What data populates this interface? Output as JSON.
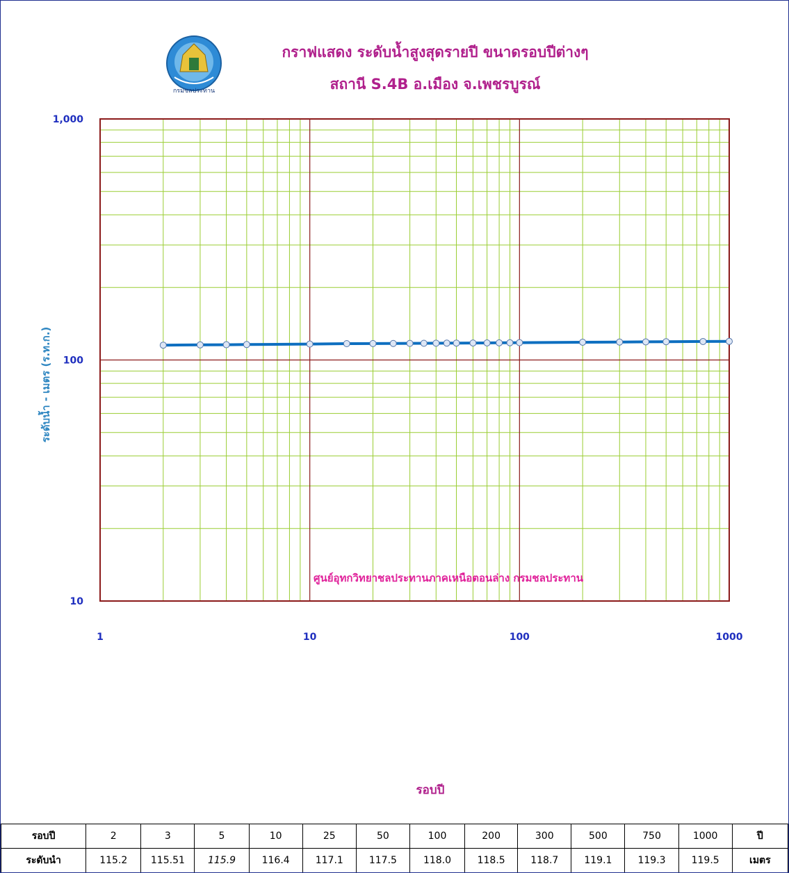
{
  "header": {
    "title": "กราฟแสดง ระดับน้ำสูงสุดรายปี ขนาดรอบปีต่างๆ",
    "subtitle": "สถานี S.4B  อ.เมือง จ.เพชรบูรณ์",
    "logo_text": "กรมชลประทาน"
  },
  "chart_data": {
    "type": "line",
    "xlabel": "รอบปี",
    "ylabel": "ระดับน้ำ  -  เมตร (ร.ท.ก.)",
    "x_scale": "log",
    "y_scale": "log",
    "xlim": [
      1,
      1000
    ],
    "ylim": [
      10,
      1000
    ],
    "x_tick_labels": [
      "1",
      "10",
      "100",
      "1000"
    ],
    "y_tick_labels": [
      "10",
      "100",
      "1,000"
    ],
    "annotation": "ศูนย์อุทกวิทยาชลประทานภาคเหนือตอนล่าง  กรมชลประทาน",
    "grid": true,
    "series": [
      {
        "x": [
          2,
          3,
          4,
          5,
          10,
          15,
          20,
          25,
          30,
          35,
          40,
          45,
          50,
          60,
          70,
          80,
          90,
          100,
          200,
          300,
          400,
          500,
          750,
          1000
        ],
        "y": [
          115.2,
          115.51,
          115.7,
          115.9,
          116.4,
          116.9,
          117.0,
          117.1,
          117.2,
          117.3,
          117.4,
          117.45,
          117.5,
          117.6,
          117.7,
          117.8,
          117.9,
          118.0,
          118.5,
          118.7,
          118.9,
          119.1,
          119.3,
          119.5
        ]
      }
    ],
    "colors": {
      "line": "#0e6fc0",
      "marker_fill": "#dde6f5",
      "major_grid": "#8b1a1a",
      "minor_grid": "#9acd32",
      "axis_text": "#1f2fbf",
      "ylabel_text": "#2e86c1",
      "annotation_text": "#e0219a"
    }
  },
  "table": {
    "header_label": "รอบปี",
    "header_unit": "ปี",
    "value_label": "ระดับนำ",
    "value_unit": "เมตร",
    "return_periods": [
      "2",
      "3",
      "5",
      "10",
      "25",
      "50",
      "100",
      "200",
      "300",
      "500",
      "750",
      "1000"
    ],
    "levels": [
      "115.2",
      "115.51",
      "115.9",
      "116.4",
      "117.1",
      "117.5",
      "118.0",
      "118.5",
      "118.7",
      "119.1",
      "119.3",
      "119.5"
    ]
  }
}
